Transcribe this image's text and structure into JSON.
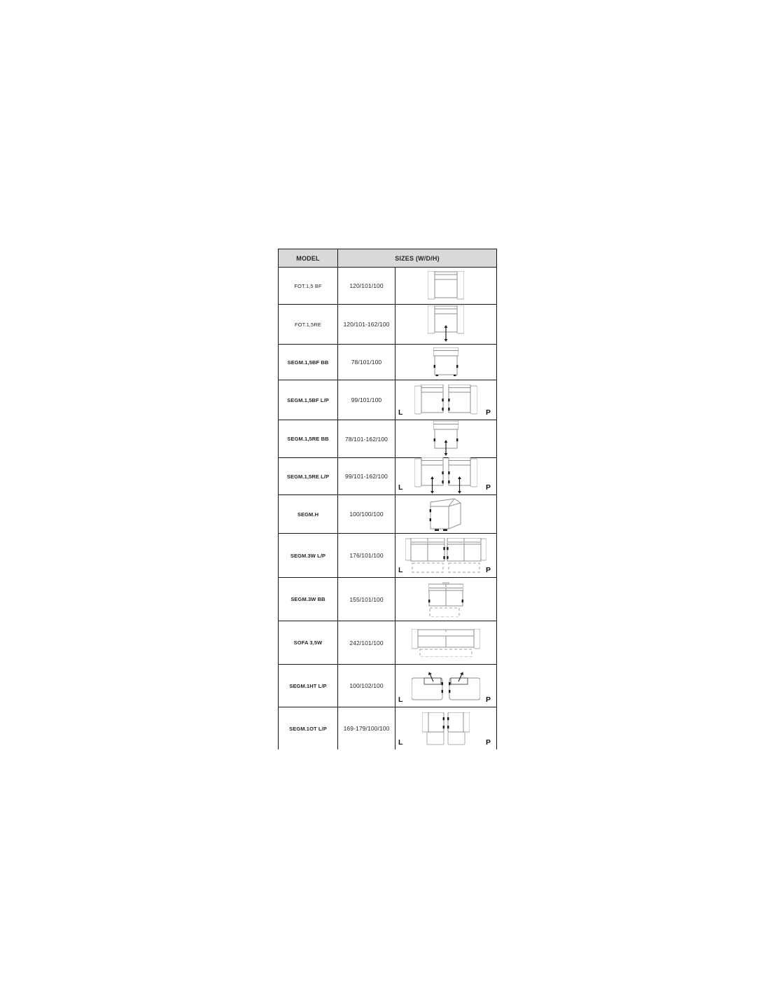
{
  "table": {
    "headers": {
      "model": "MODEL",
      "sizes": "SIZES (W/D/H)"
    },
    "legend": {
      "left": "L",
      "right": "P"
    },
    "colors": {
      "header_bg": "#d9d9d9",
      "border": "#141414",
      "text": "#262626",
      "diagram_stroke": "#8f8f8f",
      "diagram_light_stroke": "#adadad",
      "diagram_dash": "#a3a3a3",
      "diagram_accent": "#1c1c1c"
    },
    "rows": [
      {
        "model": "FOT.1,5 BF",
        "size": "120/101/100",
        "diagram": "armchair-top-view",
        "bold": false,
        "lp": false
      },
      {
        "model": "FOT.1,5RE",
        "size": "120/101-162/100",
        "diagram": "armchair-recliner-top-view",
        "bold": false,
        "lp": false
      },
      {
        "model": "SEGM.1,5BF BB",
        "size": "78/101/100",
        "diagram": "armless-segment-top-view",
        "bold": true,
        "lp": false
      },
      {
        "model": "SEGM.1,5BF L/P",
        "size": "99/101/100",
        "diagram": "segment-pair-with-arms-top-view",
        "bold": true,
        "lp": true
      },
      {
        "model": "SEGM.1,5RE BB",
        "size": "78/101-162/100",
        "diagram": "armless-segment-recliner-top-view",
        "bold": true,
        "lp": false
      },
      {
        "model": "SEGM.1,5RE L/P",
        "size": "99/101-162/100",
        "diagram": "segment-pair-recliner-top-view",
        "bold": true,
        "lp": true
      },
      {
        "model": "SEGM.H",
        "size": "100/100/100",
        "diagram": "corner-segment-3d-view",
        "bold": true,
        "lp": false
      },
      {
        "model": "SEGM.3W L/P",
        "size": "176/101/100",
        "diagram": "wide-segment-pair-sleeper-top-view",
        "bold": true,
        "lp": true
      },
      {
        "model": "SEGM.3W BB",
        "size": "155/101/100",
        "diagram": "wide-armless-segment-sleeper-top-view",
        "bold": true,
        "lp": false
      },
      {
        "model": "SOFA 3,5W",
        "size": "242/101/100",
        "diagram": "sofa-sleeper-top-view",
        "bold": true,
        "lp": false
      },
      {
        "model": "SEGM.1HT L/P",
        "size": "100/102/100",
        "diagram": "headrest-segment-pair-top-view",
        "bold": true,
        "lp": true
      },
      {
        "model": "SEGM.1OT L/P",
        "size": "169-179/100/100",
        "diagram": "ottoman-segment-pair-top-view",
        "bold": true,
        "lp": true
      }
    ]
  }
}
